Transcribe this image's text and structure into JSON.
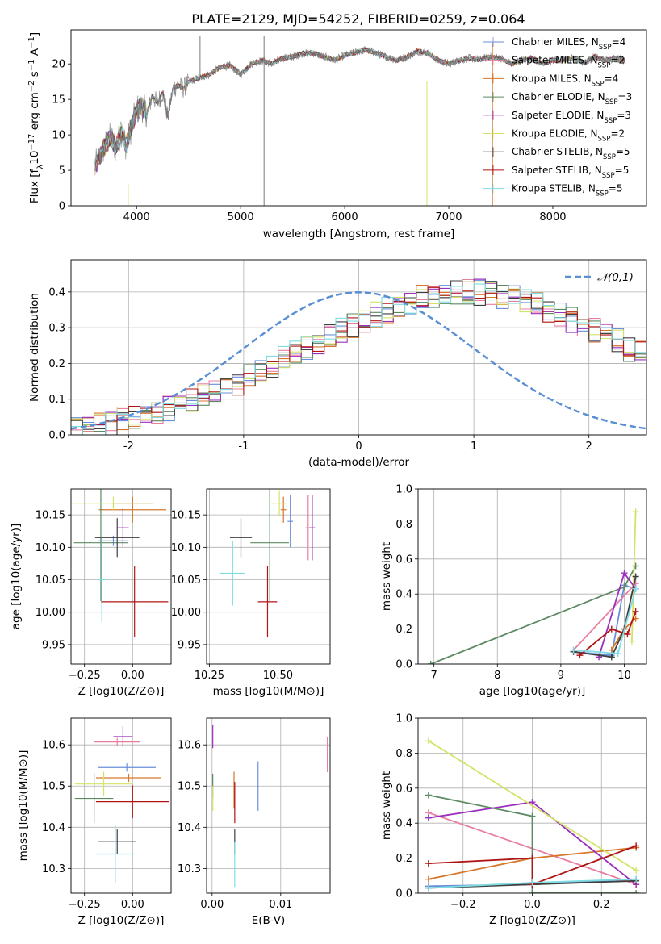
{
  "figure_title": "PLATE=2129, MJD=54252, FIBERID=0259, z=0.064",
  "series": [
    {
      "name": "Chabrier MILES, N_SSP=4",
      "color": "#6a8fd8"
    },
    {
      "name": "Salpeter MILES, N_SSP=2",
      "color": "#e97fa0"
    },
    {
      "name": "Kroupa MILES, N_SSP=4",
      "color": "#d6772c"
    },
    {
      "name": "Chabrier ELODIE, N_SSP=3",
      "color": "#5e8a63"
    },
    {
      "name": "Salpeter ELODIE, N_SSP=3",
      "color": "#9b2fbe"
    },
    {
      "name": "Kroupa ELODIE, N_SSP=2",
      "color": "#d3e36a"
    },
    {
      "name": "Chabrier STELIB, N_SSP=5",
      "color": "#3f3f3f"
    },
    {
      "name": "Salpeter STELIB, N_SSP=5",
      "color": "#b01515"
    },
    {
      "name": "Kroupa STELIB, N_SSP=5",
      "color": "#7fdde2"
    }
  ],
  "chart_data": [
    {
      "id": "spectrum",
      "type": "line",
      "title": "PLATE=2129, MJD=54252, FIBERID=0259, z=0.064",
      "xlabel": "wavelength [Angstrom, rest frame]",
      "ylabel": "Flux [f_λ 10^-17 erg cm^-2 s^-1 A^-1]",
      "xlim": [
        3370,
        8900
      ],
      "ylim": [
        0,
        24.8
      ],
      "xticks": [
        4000,
        5000,
        6000,
        7000,
        8000
      ],
      "yticks": [
        0,
        5,
        10,
        15,
        20
      ],
      "grid": false,
      "legend": "top-right",
      "observed": {
        "name": "observed spectrum",
        "color": "#7a7a7a",
        "x": [
          3600,
          3650,
          3700,
          3750,
          3800,
          3850,
          3900,
          3950,
          4000,
          4050,
          4100,
          4150,
          4200,
          4250,
          4300,
          4350,
          4400,
          4450,
          4500,
          4600,
          4700,
          4800,
          4900,
          5000,
          5100,
          5200,
          5300,
          5400,
          5500,
          5600,
          5700,
          5800,
          5900,
          6000,
          6100,
          6200,
          6300,
          6400,
          6500,
          6600,
          6700,
          6800,
          6900,
          7000,
          7100,
          7200,
          7300,
          7400,
          7500,
          7600,
          7700,
          7800,
          7900,
          8000,
          8100,
          8200,
          8300,
          8400,
          8500,
          8600,
          8700
        ],
        "y": [
          5.5,
          7.0,
          8.5,
          9.8,
          8.0,
          10.5,
          8.5,
          11.0,
          13.5,
          14.0,
          13.0,
          15.5,
          14.5,
          16.0,
          12.5,
          16.5,
          17.0,
          16.5,
          17.5,
          18.0,
          18.5,
          19.5,
          19.8,
          18.5,
          20.0,
          20.5,
          20.0,
          20.8,
          21.0,
          21.5,
          21.5,
          21.0,
          20.5,
          21.2,
          21.6,
          22.0,
          21.5,
          21.0,
          20.5,
          21.0,
          21.8,
          21.5,
          20.5,
          20.0,
          20.5,
          20.8,
          20.6,
          21.0,
          20.8,
          20.0,
          20.5,
          20.8,
          20.0,
          20.5,
          20.5,
          20.8,
          20.2,
          21.0,
          20.5,
          20.8,
          20.5
        ]
      },
      "spikes": [
        {
          "x": 5225,
          "ymin": 0,
          "ymax": 24.0,
          "color": "#7a7a7a"
        },
        {
          "x": 6790,
          "ymin": 0,
          "ymax": 17.5,
          "color": "#d3e36a"
        },
        {
          "x": 7420,
          "ymin": 0,
          "ymax": 23.0,
          "color": "#d6772c"
        },
        {
          "x": 4610,
          "ymin": 18.0,
          "ymax": 24.0,
          "color": "#7a7a7a"
        },
        {
          "x": 3920,
          "ymin": 0,
          "ymax": 3.0,
          "color": "#d3e36a"
        }
      ]
    },
    {
      "id": "residuals",
      "type": "line",
      "xlabel": "(data-model)/error",
      "ylabel": "Normed distribution",
      "xlim": [
        -2.5,
        2.5
      ],
      "ylim": [
        0,
        0.49
      ],
      "xticks": [
        -2,
        -1,
        0,
        1,
        2
      ],
      "yticks": [
        0.0,
        0.1,
        0.2,
        0.3,
        0.4
      ],
      "grid": true,
      "legend": "top-right",
      "normal_curve": {
        "name": "𝒩(0,1)",
        "color": "#5b8fd4",
        "dashed": true
      },
      "histogram_bins": {
        "start": -2.5,
        "width": 0.1,
        "values": [
          0.018,
          0.022,
          0.028,
          0.034,
          0.042,
          0.05,
          0.058,
          0.066,
          0.075,
          0.085,
          0.096,
          0.108,
          0.12,
          0.134,
          0.148,
          0.163,
          0.178,
          0.194,
          0.21,
          0.226,
          0.243,
          0.26,
          0.276,
          0.292,
          0.308,
          0.323,
          0.337,
          0.35,
          0.362,
          0.373,
          0.382,
          0.389,
          0.395,
          0.398,
          0.399,
          0.398,
          0.395,
          0.389,
          0.382,
          0.373,
          0.362,
          0.35,
          0.337,
          0.323,
          0.308,
          0.292,
          0.276,
          0.26,
          0.243,
          0.226
        ]
      }
    },
    {
      "id": "age_vs_Z",
      "type": "scatter",
      "xlabel": "Z [log10(Z/Z⊙)]",
      "ylabel": "age  [log10(age/yr)]",
      "xlim": [
        -0.32,
        0.2
      ],
      "ylim": [
        9.92,
        10.19
      ],
      "xticks": [
        -0.25,
        0.0
      ],
      "xticklabels": [
        "−0.25",
        "0.00"
      ],
      "yticks": [
        9.95,
        10.0,
        10.05,
        10.1,
        10.15
      ],
      "grid": true,
      "points": [
        {
          "series": 0,
          "x": -0.1,
          "y": 10.11,
          "xerr": 0.08,
          "yerr": 0.008
        },
        {
          "series": 1,
          "x": 0.0,
          "y": 10.168,
          "xerr": 0.105,
          "yerr": 0.01
        },
        {
          "series": 2,
          "x": 0.0,
          "y": 10.158,
          "xerr": 0.175,
          "yerr": 0.02
        },
        {
          "series": 3,
          "x": -0.165,
          "y": 10.107,
          "xerr": 0.14,
          "yerr": 0.09
        },
        {
          "series": 4,
          "x": -0.05,
          "y": 10.13,
          "xerr": 0.03,
          "yerr": 0.03
        },
        {
          "series": 5,
          "x": -0.1,
          "y": 10.168,
          "xerr": 0.21,
          "yerr": 0.01
        },
        {
          "series": 6,
          "x": -0.08,
          "y": 10.115,
          "xerr": 0.115,
          "yerr": 0.03
        },
        {
          "series": 7,
          "x": 0.01,
          "y": 10.016,
          "xerr": 0.175,
          "yerr": 0.055
        },
        {
          "series": 8,
          "x": -0.16,
          "y": 10.05,
          "xerr": 0.02,
          "yerr": 0.065
        }
      ]
    },
    {
      "id": "age_vs_mass",
      "type": "scatter",
      "xlabel": "mass [log10(M/M⊙)]",
      "ylabel": "",
      "xlim": [
        10.24,
        10.69
      ],
      "ylim": [
        9.92,
        10.19
      ],
      "xticks": [
        10.25,
        10.5
      ],
      "xticklabels": [
        "10.25",
        "10.50"
      ],
      "yticks": [
        9.95,
        10.0,
        10.05,
        10.1,
        10.15
      ],
      "grid": true,
      "points": [
        {
          "series": 0,
          "x": 10.545,
          "y": 10.14,
          "xerr": 0.01,
          "yerr": 0.04
        },
        {
          "series": 1,
          "x": 10.61,
          "y": 10.13,
          "xerr": 0.01,
          "yerr": 0.05
        },
        {
          "series": 2,
          "x": 10.52,
          "y": 10.158,
          "xerr": 0.01,
          "yerr": 0.02
        },
        {
          "series": 3,
          "x": 10.47,
          "y": 10.107,
          "xerr": 0.07,
          "yerr": 0.09
        },
        {
          "series": 4,
          "x": 10.625,
          "y": 10.13,
          "xerr": 0.01,
          "yerr": 0.05
        },
        {
          "series": 5,
          "x": 10.505,
          "y": 10.168,
          "xerr": 0.03,
          "yerr": 0.02
        },
        {
          "series": 6,
          "x": 10.365,
          "y": 10.115,
          "xerr": 0.04,
          "yerr": 0.03
        },
        {
          "series": 7,
          "x": 10.462,
          "y": 10.016,
          "xerr": 0.035,
          "yerr": 0.055
        },
        {
          "series": 8,
          "x": 10.335,
          "y": 10.06,
          "xerr": 0.045,
          "yerr": 0.05
        }
      ]
    },
    {
      "id": "weights_vs_age",
      "type": "line",
      "xlabel": "age  [log10(age/yr)]",
      "ylabel": "mass weight",
      "xlim": [
        6.75,
        10.35
      ],
      "ylim": [
        0,
        1.0
      ],
      "xticks": [
        7,
        8,
        9,
        10
      ],
      "yticks": [
        0.0,
        0.2,
        0.4,
        0.6,
        0.8,
        1.0
      ],
      "grid": true,
      "lines": [
        {
          "series": 0,
          "x": [
            9.2,
            9.8,
            10.0,
            10.18
          ],
          "y": [
            0.07,
            0.05,
            0.45,
            0.43
          ]
        },
        {
          "series": 1,
          "x": [
            9.2,
            10.18
          ],
          "y": [
            0.08,
            0.46
          ]
        },
        {
          "series": 2,
          "x": [
            9.8,
            10.0,
            10.18
          ],
          "y": [
            0.08,
            0.2,
            0.26
          ]
        },
        {
          "series": 3,
          "x": [
            6.95,
            10.0,
            10.18
          ],
          "y": [
            0.0,
            0.44,
            0.56
          ]
        },
        {
          "series": 4,
          "x": [
            9.6,
            10.0,
            10.18
          ],
          "y": [
            0.04,
            0.52,
            0.43
          ]
        },
        {
          "series": 5,
          "x": [
            10.12,
            10.18
          ],
          "y": [
            0.13,
            0.87
          ]
        },
        {
          "series": 6,
          "x": [
            9.2,
            9.8,
            10.0,
            10.18
          ],
          "y": [
            0.07,
            0.04,
            0.2,
            0.5
          ]
        },
        {
          "series": 7,
          "x": [
            9.3,
            9.8,
            10.05,
            10.18
          ],
          "y": [
            0.05,
            0.2,
            0.17,
            0.3
          ]
        },
        {
          "series": 8,
          "x": [
            9.2,
            9.9,
            10.18
          ],
          "y": [
            0.08,
            0.06,
            0.43
          ]
        }
      ]
    },
    {
      "id": "mass_vs_Z",
      "type": "scatter",
      "xlabel": "Z [log10(Z/Z⊙)]",
      "ylabel": "mass [log10(M/M⊙)]",
      "xlim": [
        -0.32,
        0.2
      ],
      "ylim": [
        10.24,
        10.665
      ],
      "xticks": [
        -0.25,
        0.0
      ],
      "xticklabels": [
        "−0.25",
        "0.00"
      ],
      "yticks": [
        10.3,
        10.4,
        10.5,
        10.6
      ],
      "grid": true,
      "points": [
        {
          "series": 0,
          "x": -0.03,
          "y": 10.545,
          "xerr": 0.15,
          "yerr": 0.01
        },
        {
          "series": 1,
          "x": -0.08,
          "y": 10.607,
          "xerr": 0.12,
          "yerr": 0.01
        },
        {
          "series": 2,
          "x": -0.02,
          "y": 10.52,
          "xerr": 0.17,
          "yerr": 0.01
        },
        {
          "series": 3,
          "x": -0.2,
          "y": 10.47,
          "xerr": 0.1,
          "yerr": 0.06
        },
        {
          "series": 4,
          "x": -0.05,
          "y": 10.62,
          "xerr": 0.05,
          "yerr": 0.025
        },
        {
          "series": 5,
          "x": -0.15,
          "y": 10.505,
          "xerr": 0.15,
          "yerr": 0.03
        },
        {
          "series": 6,
          "x": -0.08,
          "y": 10.365,
          "xerr": 0.1,
          "yerr": 0.03
        },
        {
          "series": 7,
          "x": 0.0,
          "y": 10.462,
          "xerr": 0.19,
          "yerr": 0.04
        },
        {
          "series": 8,
          "x": -0.09,
          "y": 10.335,
          "xerr": 0.1,
          "yerr": 0.07
        }
      ]
    },
    {
      "id": "mass_vs_EBV",
      "type": "scatter",
      "xlabel": "E(B-V)",
      "ylabel": "",
      "xlim": [
        -0.0008,
        0.0172
      ],
      "ylim": [
        10.24,
        10.665
      ],
      "xticks": [
        0.0,
        0.01
      ],
      "xticklabels": [
        "0.00",
        "0.01"
      ],
      "yticks": [
        10.3,
        10.4,
        10.5,
        10.6
      ],
      "grid": true,
      "points": [
        {
          "series": 0,
          "x": 0.0067,
          "y": 10.5,
          "xerr": 0,
          "yerr": 0.06
        },
        {
          "series": 1,
          "x": 0.0168,
          "y": 10.577,
          "xerr": 0,
          "yerr": 0.043
        },
        {
          "series": 2,
          "x": 0.0032,
          "y": 10.49,
          "xerr": 0,
          "yerr": 0.045
        },
        {
          "series": 3,
          "x": 0.0001,
          "y": 10.5,
          "xerr": 0,
          "yerr": 0.03
        },
        {
          "series": 4,
          "x": 0.0001,
          "y": 10.62,
          "xerr": 0,
          "yerr": 0.028
        },
        {
          "series": 5,
          "x": 0.0001,
          "y": 10.47,
          "xerr": 0,
          "yerr": 0.03
        },
        {
          "series": 6,
          "x": 0.0033,
          "y": 10.365,
          "xerr": 0,
          "yerr": 0.03
        },
        {
          "series": 7,
          "x": 0.0033,
          "y": 10.46,
          "xerr": 0,
          "yerr": 0.05
        },
        {
          "series": 8,
          "x": 0.0033,
          "y": 10.31,
          "xerr": 0,
          "yerr": 0.055
        }
      ]
    },
    {
      "id": "weights_vs_Z",
      "type": "line",
      "xlabel": "Z [log10(Z/Z⊙)]",
      "ylabel": "mass weight",
      "xlim": [
        -0.33,
        0.33
      ],
      "ylim": [
        0,
        1.0
      ],
      "xticks": [
        -0.2,
        0.0,
        0.2
      ],
      "xticklabels": [
        "−0.2",
        "0.0",
        "0.2"
      ],
      "yticks": [
        0.0,
        0.2,
        0.4,
        0.6,
        0.8,
        1.0
      ],
      "grid": true,
      "lines": [
        {
          "series": 0,
          "x": [
            -0.3,
            0.0,
            0.3
          ],
          "y": [
            0.04,
            0.05,
            0.08
          ]
        },
        {
          "series": 1,
          "x": [
            -0.3,
            0.3
          ],
          "y": [
            0.46,
            0.05
          ]
        },
        {
          "series": 2,
          "x": [
            -0.3,
            0.0,
            0.3
          ],
          "y": [
            0.08,
            0.2,
            0.26
          ]
        },
        {
          "series": 3,
          "x": [
            -0.3,
            0.0,
            0.0,
            0.3
          ],
          "y": [
            0.56,
            0.44,
            0.0,
            0.0
          ]
        },
        {
          "series": 4,
          "x": [
            -0.3,
            0.0,
            0.3
          ],
          "y": [
            0.43,
            0.52,
            0.05
          ]
        },
        {
          "series": 5,
          "x": [
            -0.3,
            0.3
          ],
          "y": [
            0.87,
            0.13
          ]
        },
        {
          "series": 6,
          "x": [
            -0.3,
            0.0,
            0.3
          ],
          "y": [
            0.03,
            0.05,
            0.07
          ]
        },
        {
          "series": 7,
          "x": [
            -0.3,
            0.0,
            0.0,
            0.3
          ],
          "y": [
            0.17,
            0.2,
            0.05,
            0.27
          ]
        },
        {
          "series": 8,
          "x": [
            -0.3,
            0.0,
            0.3
          ],
          "y": [
            0.03,
            0.06,
            0.08
          ]
        }
      ]
    }
  ]
}
